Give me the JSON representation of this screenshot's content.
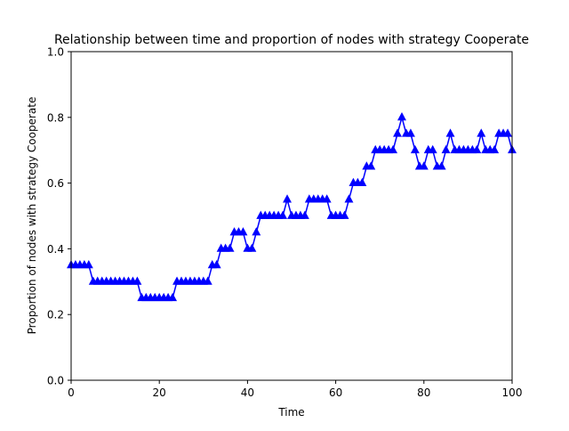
{
  "chart_data": {
    "type": "line",
    "title": "Relationship between time and proportion of nodes with strategy Cooperate",
    "xlabel": "Time",
    "ylabel": "Proportion of nodes with strategy Cooperate",
    "xlim": [
      0,
      100
    ],
    "ylim": [
      0.0,
      1.0
    ],
    "xticks": [
      0,
      20,
      40,
      60,
      80,
      100
    ],
    "xtick_labels": [
      "0",
      "20",
      "40",
      "60",
      "80",
      "100"
    ],
    "yticks": [
      0.0,
      0.2,
      0.4,
      0.6,
      0.8,
      1.0
    ],
    "ytick_labels": [
      "0.0",
      "0.2",
      "0.4",
      "0.6",
      "0.8",
      "1.0"
    ],
    "grid": false,
    "marker": "triangle-up",
    "color": "#0000ff",
    "series": [
      {
        "x": [
          0,
          1,
          2,
          3,
          4,
          5,
          6,
          7,
          8,
          9,
          10,
          11,
          12,
          13,
          14,
          15,
          16,
          17,
          18,
          19,
          20,
          21,
          22,
          23,
          24,
          25,
          26,
          27,
          28,
          29,
          30,
          31,
          32,
          33,
          34,
          35,
          36,
          37,
          38,
          39,
          40,
          41,
          42,
          43,
          44,
          45,
          46,
          47,
          48,
          49,
          50,
          51,
          52,
          53,
          54,
          55,
          56,
          57,
          58,
          59,
          60,
          61,
          62,
          63,
          64,
          65,
          66,
          67,
          68,
          69,
          70,
          71,
          72,
          73,
          74,
          75,
          76,
          77,
          78,
          79,
          80,
          81,
          82,
          83,
          84,
          85,
          86,
          87,
          88,
          89,
          90,
          91,
          92,
          93,
          94,
          95,
          96,
          97,
          98,
          99,
          100
        ],
        "y": [
          0.35,
          0.35,
          0.35,
          0.35,
          0.35,
          0.3,
          0.3,
          0.3,
          0.3,
          0.3,
          0.3,
          0.3,
          0.3,
          0.3,
          0.3,
          0.3,
          0.25,
          0.25,
          0.25,
          0.25,
          0.25,
          0.25,
          0.25,
          0.25,
          0.3,
          0.3,
          0.3,
          0.3,
          0.3,
          0.3,
          0.3,
          0.3,
          0.35,
          0.35,
          0.4,
          0.4,
          0.4,
          0.45,
          0.45,
          0.45,
          0.4,
          0.4,
          0.45,
          0.5,
          0.5,
          0.5,
          0.5,
          0.5,
          0.5,
          0.55,
          0.5,
          0.5,
          0.5,
          0.5,
          0.55,
          0.55,
          0.55,
          0.55,
          0.55,
          0.5,
          0.5,
          0.5,
          0.5,
          0.55,
          0.6,
          0.6,
          0.6,
          0.65,
          0.65,
          0.7,
          0.7,
          0.7,
          0.7,
          0.7,
          0.75,
          0.8,
          0.75,
          0.75,
          0.7,
          0.65,
          0.65,
          0.7,
          0.7,
          0.65,
          0.65,
          0.7,
          0.75,
          0.7,
          0.7,
          0.7,
          0.7,
          0.7,
          0.7,
          0.75,
          0.7,
          0.7,
          0.7,
          0.75,
          0.75,
          0.75,
          0.7
        ]
      }
    ]
  }
}
